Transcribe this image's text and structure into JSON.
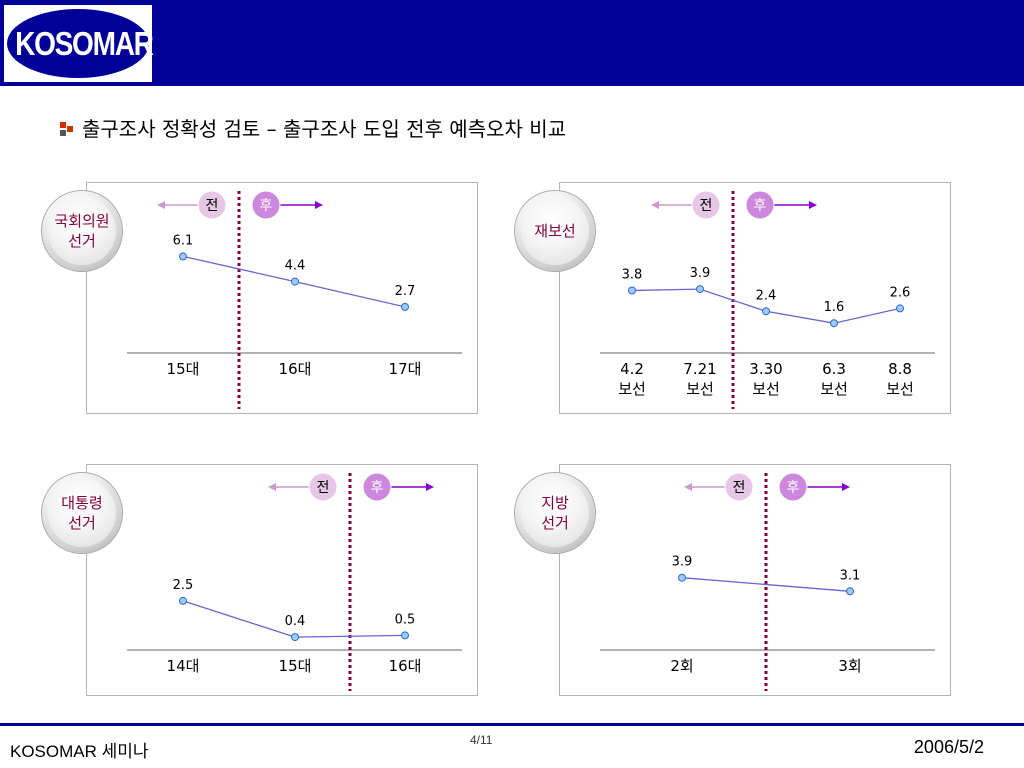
{
  "header": {
    "logo_text": "KOSOMAR",
    "bg_color": "#000099"
  },
  "title": "출구조사 정확성 검토 – 출구조사 도입 전후 예측오차 비교",
  "badges": {
    "before": "전",
    "after": "후"
  },
  "colors": {
    "line": "#6666cc",
    "point_fill": "#99ccff",
    "point_stroke": "#3366cc",
    "divider": "#800040",
    "before_badge": "#e6c8e6",
    "after_badge": "#cc88dd",
    "arrow_before": "#cc99cc",
    "arrow_after": "#8800cc",
    "circle_text": "#800040"
  },
  "chart_data": [
    {
      "type": "line",
      "label_lines": [
        "국회의원",
        "선거"
      ],
      "categories": [
        [
          "15대"
        ],
        [
          "16대"
        ],
        [
          "17대"
        ]
      ],
      "values": [
        6.1,
        4.4,
        2.7
      ],
      "value_labels": [
        "6.1",
        "4.4",
        "2.7"
      ],
      "divider_after_index": 0,
      "ylim": [
        0,
        7
      ]
    },
    {
      "type": "line",
      "label_lines": [
        "재보선"
      ],
      "categories": [
        [
          "4.2",
          "보선"
        ],
        [
          "7.21",
          "보선"
        ],
        [
          "3.30",
          "보선"
        ],
        [
          "6.3",
          "보선"
        ],
        [
          "8.8",
          "보선"
        ]
      ],
      "values": [
        3.8,
        3.9,
        2.4,
        1.6,
        2.6
      ],
      "value_labels": [
        "3.8",
        "3.9",
        "2.4",
        "1.6",
        "2.6"
      ],
      "divider_after_index": 1,
      "ylim": [
        0,
        7
      ]
    },
    {
      "type": "line",
      "label_lines": [
        "대통령",
        "선거"
      ],
      "categories": [
        [
          "14대"
        ],
        [
          "15대"
        ],
        [
          "16대"
        ]
      ],
      "values": [
        2.5,
        0.4,
        0.5
      ],
      "value_labels": [
        "2.5",
        "0.4",
        "0.5"
      ],
      "divider_after_index": 1,
      "ylim": [
        0,
        4
      ]
    },
    {
      "type": "line",
      "label_lines": [
        "지방",
        "선거"
      ],
      "categories": [
        [
          "2회"
        ],
        [
          "3회"
        ]
      ],
      "values": [
        3.9,
        3.1
      ],
      "value_labels": [
        "3.9",
        "3.1"
      ],
      "divider_after_index": 0,
      "ylim": [
        0,
        7
      ]
    }
  ],
  "footer": {
    "left": "KOSOMAR 세미나",
    "page": "4/11",
    "date": "2006/5/2"
  }
}
